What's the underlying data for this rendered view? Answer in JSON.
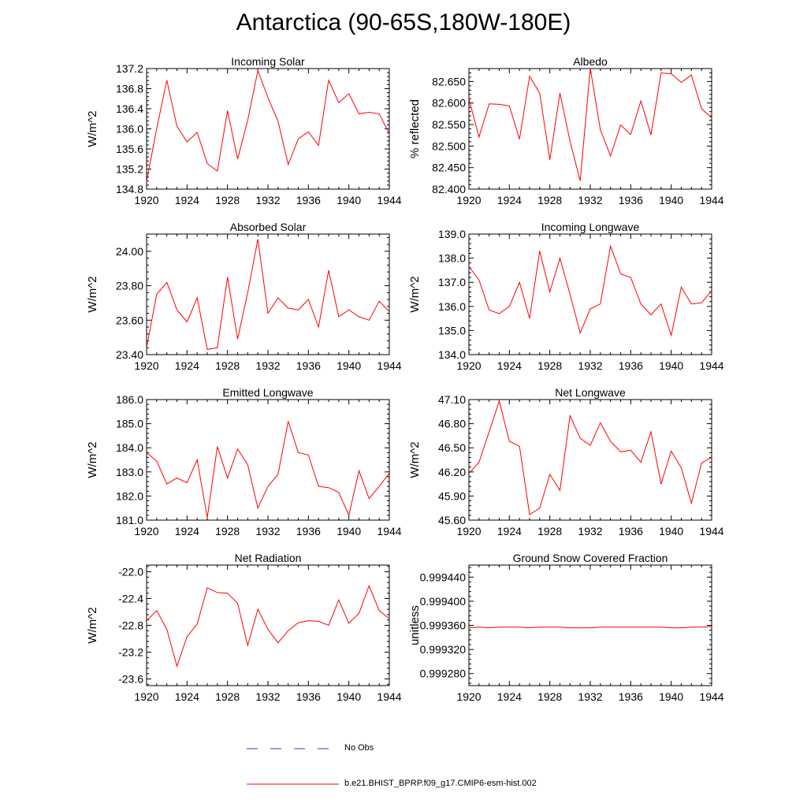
{
  "page": {
    "title": "Antarctica (90-65S,180W-180E)"
  },
  "legend": {
    "obs_label": "No Obs",
    "model_label": "b.e21.BHIST_BPRP.f09_g17.CMIP6-esm-hist.002",
    "obs_color": "#3a3aa8",
    "model_color": "#ff0000"
  },
  "chart_data": [
    {
      "type": "line",
      "title": "Incoming Solar",
      "ylabel": "W/m^2",
      "xlim": [
        1920,
        1944
      ],
      "ylim": [
        134.8,
        137.2
      ],
      "xticks": [
        1920,
        1924,
        1928,
        1932,
        1936,
        1940,
        1944
      ],
      "yticks": [
        "134.8",
        "135.2",
        "135.6",
        "136.0",
        "136.4",
        "136.8",
        "137.2"
      ],
      "series": [
        {
          "name": "b.e21.BHIST_BPRP.f09_g17.CMIP6-esm-hist.002",
          "x": [
            1920,
            1921,
            1922,
            1923,
            1924,
            1925,
            1926,
            1927,
            1928,
            1929,
            1930,
            1931,
            1932,
            1933,
            1934,
            1935,
            1936,
            1937,
            1938,
            1939,
            1940,
            1941,
            1942,
            1943,
            1944
          ],
          "values": [
            134.95,
            136.0,
            136.97,
            136.05,
            135.74,
            135.93,
            135.31,
            135.16,
            136.36,
            135.4,
            136.17,
            137.16,
            136.62,
            136.15,
            135.29,
            135.8,
            135.94,
            135.67,
            136.97,
            136.52,
            136.7,
            136.3,
            136.33,
            136.3,
            135.9
          ]
        }
      ]
    },
    {
      "type": "line",
      "title": "Albedo",
      "ylabel": "% reflected",
      "xlim": [
        1920,
        1944
      ],
      "ylim": [
        82.4,
        82.68
      ],
      "xticks": [
        1920,
        1924,
        1928,
        1932,
        1936,
        1940,
        1944
      ],
      "yticks": [
        "82.400",
        "82.450",
        "82.500",
        "82.550",
        "82.600",
        "82.650"
      ],
      "series": [
        {
          "name": "b.e21.BHIST_BPRP.f09_g17.CMIP6-esm-hist.002",
          "x": [
            1920,
            1921,
            1922,
            1923,
            1924,
            1925,
            1926,
            1927,
            1928,
            1929,
            1930,
            1931,
            1932,
            1933,
            1934,
            1935,
            1936,
            1937,
            1938,
            1939,
            1940,
            1941,
            1942,
            1943,
            1944
          ],
          "values": [
            82.61,
            82.521,
            82.598,
            82.597,
            82.593,
            82.516,
            82.662,
            82.623,
            82.468,
            82.623,
            82.511,
            82.419,
            82.681,
            82.538,
            82.477,
            82.549,
            82.527,
            82.605,
            82.526,
            82.67,
            82.668,
            82.648,
            82.665,
            82.587,
            82.565
          ]
        }
      ]
    },
    {
      "type": "line",
      "title": "Absorbed Solar",
      "ylabel": "W/m^2",
      "xlim": [
        1920,
        1944
      ],
      "ylim": [
        23.4,
        24.1
      ],
      "xticks": [
        1920,
        1924,
        1928,
        1932,
        1936,
        1940,
        1944
      ],
      "yticks": [
        "23.40",
        "23.60",
        "23.80",
        "24.00"
      ],
      "series": [
        {
          "name": "b.e21.BHIST_BPRP.f09_g17.CMIP6-esm-hist.002",
          "x": [
            1920,
            1921,
            1922,
            1923,
            1924,
            1925,
            1926,
            1927,
            1928,
            1929,
            1930,
            1931,
            1932,
            1933,
            1934,
            1935,
            1936,
            1937,
            1938,
            1939,
            1940,
            1941,
            1942,
            1943,
            1944
          ],
          "values": [
            23.44,
            23.75,
            23.82,
            23.66,
            23.59,
            23.73,
            23.43,
            23.44,
            23.85,
            23.49,
            23.76,
            24.07,
            23.64,
            23.73,
            23.67,
            23.66,
            23.72,
            23.56,
            23.89,
            23.62,
            23.66,
            23.62,
            23.6,
            23.71,
            23.65
          ]
        }
      ]
    },
    {
      "type": "line",
      "title": "Incoming Longwave",
      "ylabel": "W/m^2",
      "xlim": [
        1920,
        1944
      ],
      "ylim": [
        134.0,
        139.0
      ],
      "xticks": [
        1920,
        1924,
        1928,
        1932,
        1936,
        1940,
        1944
      ],
      "yticks": [
        "134.0",
        "135.0",
        "136.0",
        "137.0",
        "138.0",
        "139.0"
      ],
      "series": [
        {
          "name": "b.e21.BHIST_BPRP.f09_g17.CMIP6-esm-hist.002",
          "x": [
            1920,
            1921,
            1922,
            1923,
            1924,
            1925,
            1926,
            1927,
            1928,
            1929,
            1930,
            1931,
            1932,
            1933,
            1934,
            1935,
            1936,
            1937,
            1938,
            1939,
            1940,
            1941,
            1942,
            1943,
            1944
          ],
          "values": [
            137.65,
            137.1,
            135.85,
            135.7,
            136.0,
            137.0,
            135.5,
            138.3,
            136.6,
            138.0,
            136.5,
            134.9,
            135.9,
            136.1,
            138.5,
            137.35,
            137.2,
            136.1,
            135.65,
            136.1,
            134.8,
            136.8,
            136.1,
            136.15,
            136.65
          ]
        }
      ]
    },
    {
      "type": "line",
      "title": "Emitted Longwave",
      "ylabel": "W/m^2",
      "xlim": [
        1920,
        1944
      ],
      "ylim": [
        181.0,
        186.0
      ],
      "xticks": [
        1920,
        1924,
        1928,
        1932,
        1936,
        1940,
        1944
      ],
      "yticks": [
        "181.0",
        "182.0",
        "183.0",
        "184.0",
        "185.0",
        "186.0"
      ],
      "series": [
        {
          "name": "b.e21.BHIST_BPRP.f09_g17.CMIP6-esm-hist.002",
          "x": [
            1920,
            1921,
            1922,
            1923,
            1924,
            1925,
            1926,
            1927,
            1928,
            1929,
            1930,
            1931,
            1932,
            1933,
            1934,
            1935,
            1936,
            1937,
            1938,
            1939,
            1940,
            1941,
            1942,
            1943,
            1944
          ],
          "values": [
            183.8,
            183.45,
            182.5,
            182.75,
            182.55,
            183.5,
            181.1,
            184.05,
            182.75,
            183.95,
            183.3,
            181.5,
            182.4,
            182.9,
            185.1,
            183.8,
            183.7,
            182.4,
            182.35,
            182.15,
            181.2,
            183.05,
            181.9,
            182.4,
            182.95
          ]
        }
      ]
    },
    {
      "type": "line",
      "title": "Net Longwave",
      "ylabel": "W/m^2",
      "xlim": [
        1920,
        1944
      ],
      "ylim": [
        45.6,
        47.1
      ],
      "xticks": [
        1920,
        1924,
        1928,
        1932,
        1936,
        1940,
        1944
      ],
      "yticks": [
        "45.60",
        "45.90",
        "46.20",
        "46.50",
        "46.80",
        "47.10"
      ],
      "series": [
        {
          "name": "b.e21.BHIST_BPRP.f09_g17.CMIP6-esm-hist.002",
          "x": [
            1920,
            1921,
            1922,
            1923,
            1924,
            1925,
            1926,
            1927,
            1928,
            1929,
            1930,
            1931,
            1932,
            1933,
            1934,
            1935,
            1936,
            1937,
            1938,
            1939,
            1940,
            1941,
            1942,
            1943,
            1944
          ],
          "values": [
            46.18,
            46.32,
            46.7,
            47.08,
            46.58,
            46.52,
            45.67,
            45.75,
            46.17,
            45.97,
            46.9,
            46.62,
            46.53,
            46.81,
            46.58,
            46.45,
            46.47,
            46.32,
            46.7,
            46.05,
            46.46,
            46.25,
            45.81,
            46.31,
            46.38
          ]
        }
      ]
    },
    {
      "type": "line",
      "title": "Net Radiation",
      "ylabel": "W/m^2",
      "xlim": [
        1920,
        1944
      ],
      "ylim": [
        -23.7,
        -21.9
      ],
      "xticks": [
        1920,
        1924,
        1928,
        1932,
        1936,
        1940,
        1944
      ],
      "yticks": [
        "-23.6",
        "-23.2",
        "-22.8",
        "-22.4",
        "-22.0"
      ],
      "series": [
        {
          "name": "b.e21.BHIST_BPRP.f09_g17.CMIP6-esm-hist.002",
          "x": [
            1920,
            1921,
            1922,
            1923,
            1924,
            1925,
            1926,
            1927,
            1928,
            1929,
            1930,
            1931,
            1932,
            1933,
            1934,
            1935,
            1936,
            1937,
            1938,
            1939,
            1940,
            1941,
            1942,
            1943,
            1944
          ],
          "values": [
            -22.73,
            -22.58,
            -22.86,
            -23.41,
            -22.97,
            -22.78,
            -22.24,
            -22.31,
            -22.32,
            -22.47,
            -23.1,
            -22.56,
            -22.86,
            -23.06,
            -22.88,
            -22.76,
            -22.73,
            -22.74,
            -22.8,
            -22.42,
            -22.77,
            -22.62,
            -22.21,
            -22.58,
            -22.7
          ]
        }
      ]
    },
    {
      "type": "line",
      "title": "Ground Snow Covered Fraction",
      "ylabel": "unitless",
      "xlim": [
        1920,
        1944
      ],
      "ylim": [
        0.99926,
        0.99946
      ],
      "xticks": [
        1920,
        1924,
        1928,
        1932,
        1936,
        1940,
        1944
      ],
      "yticks": [
        "0.999280",
        "0.999320",
        "0.999360",
        "0.999400",
        "0.999440"
      ],
      "series": [
        {
          "name": "b.e21.BHIST_BPRP.f09_g17.CMIP6-esm-hist.002",
          "x": [
            1920,
            1921,
            1922,
            1923,
            1924,
            1925,
            1926,
            1927,
            1928,
            1929,
            1930,
            1931,
            1932,
            1933,
            1934,
            1935,
            1936,
            1937,
            1938,
            1939,
            1940,
            1941,
            1942,
            1943,
            1944
          ],
          "values": [
            0.999356,
            0.999357,
            0.999356,
            0.999357,
            0.999357,
            0.999357,
            0.999356,
            0.999357,
            0.999357,
            0.999357,
            0.999356,
            0.999356,
            0.999356,
            0.999357,
            0.999357,
            0.999357,
            0.999357,
            0.999357,
            0.999357,
            0.999357,
            0.999356,
            0.999356,
            0.999357,
            0.999357,
            0.999358
          ]
        }
      ]
    }
  ]
}
